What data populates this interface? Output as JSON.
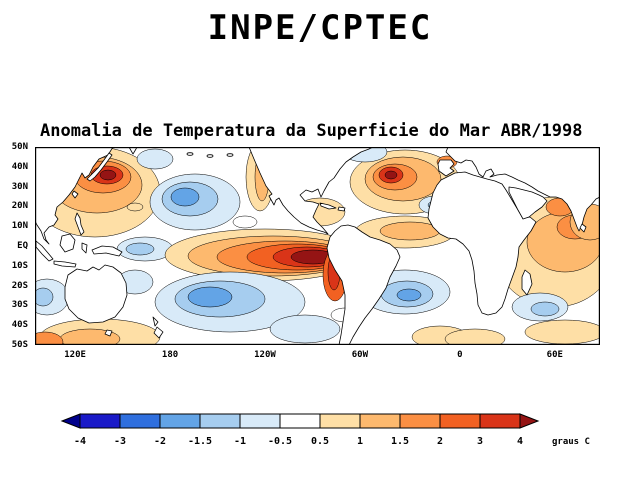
{
  "header": {
    "title": "INPE/CPTEC"
  },
  "chart": {
    "title": "Anomalia de Temperatura da Superficie do Mar ABR/1998",
    "y_ticks": [
      "50N",
      "40N",
      "30N",
      "20N",
      "10N",
      "EQ",
      "10S",
      "20S",
      "30S",
      "40S",
      "50S"
    ],
    "x_ticks": [
      {
        "label": "120E",
        "pos": 7.1
      },
      {
        "label": "180",
        "pos": 23.9
      },
      {
        "label": "120W",
        "pos": 40.7
      },
      {
        "label": "60W",
        "pos": 57.5
      },
      {
        "label": "0",
        "pos": 75.2
      },
      {
        "label": "60E",
        "pos": 92.0
      }
    ],
    "colorbar": {
      "labels": [
        "-4",
        "-3",
        "-2",
        "-1.5",
        "-1",
        "-0.5",
        "0.5",
        "1",
        "1.5",
        "2",
        "3",
        "4"
      ],
      "colors": [
        "#00008c",
        "#1a1ac8",
        "#2f6fde",
        "#63a4e6",
        "#a6cdef",
        "#d8eaf8",
        "#ffffff",
        "#fedfa6",
        "#fdb96e",
        "#fb8f43",
        "#f26122",
        "#d93418",
        "#951414"
      ],
      "unit_label": "graus C"
    }
  },
  "chart_data": {
    "type": "heatmap",
    "title": "Anomalia de Temperatura da Superficie do Mar ABR/1998",
    "source_label": "INPE/CPTEC",
    "variable": "sea surface temperature anomaly",
    "unit": "graus C",
    "projection": "cylindrical equidistant world map",
    "lat_ticks": [
      "50N",
      "40N",
      "30N",
      "20N",
      "10N",
      "EQ",
      "10S",
      "20S",
      "30S",
      "40S",
      "50S"
    ],
    "lon_ticks": [
      "120E",
      "180",
      "120W",
      "60W",
      "0",
      "60E"
    ],
    "contour_levels": [
      -4,
      -3,
      -2,
      -1.5,
      -1,
      -0.5,
      0.5,
      1,
      1.5,
      2,
      3,
      4
    ],
    "legend_position": "bottom",
    "grid": false,
    "features": [
      {
        "region": "eastern equatorial Pacific (El Nino tongue)",
        "anomaly_c": "+2 to +4"
      },
      {
        "region": "Peru/Ecuador coast",
        "anomaly_c": "+3 to +4"
      },
      {
        "region": "western North Pacific east of Japan",
        "anomaly_c": "+1 to +4"
      },
      {
        "region": "central North Pacific",
        "anomaly_c": "-0.5 to -2"
      },
      {
        "region": "western equatorial Pacific",
        "anomaly_c": "-0.5 to -1.5"
      },
      {
        "region": "central South Pacific 20S-40S",
        "anomaly_c": "-0.5 to -2"
      },
      {
        "region": "North Atlantic 35N-45N",
        "anomaly_c": "+1 to +4"
      },
      {
        "region": "subtropical mid North Atlantic",
        "anomaly_c": "-0.5 to -1"
      },
      {
        "region": "tropical Atlantic and Caribbean",
        "anomaly_c": "+0.5 to +1.5"
      },
      {
        "region": "South Atlantic 20S-40S",
        "anomaly_c": "-0.5 to -2"
      },
      {
        "region": "Indian Ocean (basin-wide warm)",
        "anomaly_c": "+0.5 to +2"
      },
      {
        "region": "southwest Indian Ocean near Madagascar",
        "anomaly_c": "-0.5 to -1.5"
      },
      {
        "region": "south of Australia",
        "anomaly_c": "+0.5 to +2"
      }
    ]
  }
}
